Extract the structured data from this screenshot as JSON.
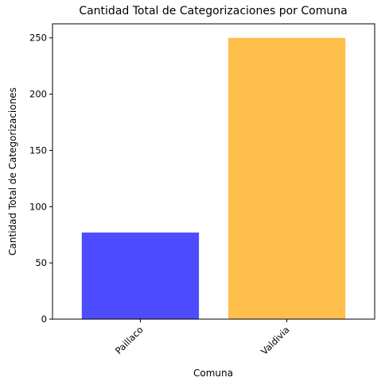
{
  "chart_data": {
    "type": "bar",
    "title": "Cantidad Total de Categorizaciones por Comuna",
    "xlabel": "Comuna",
    "ylabel": "Cantidad Total de Categorizaciones",
    "categories": [
      "Paillaco",
      "Valdivia"
    ],
    "values": [
      77,
      250
    ],
    "colors": [
      "#4d4dff",
      "#ffbf4d"
    ],
    "ylim": [
      0,
      262.5
    ],
    "yticks": [
      0,
      50,
      100,
      150,
      200,
      250
    ],
    "grid": false,
    "legend": "none"
  }
}
